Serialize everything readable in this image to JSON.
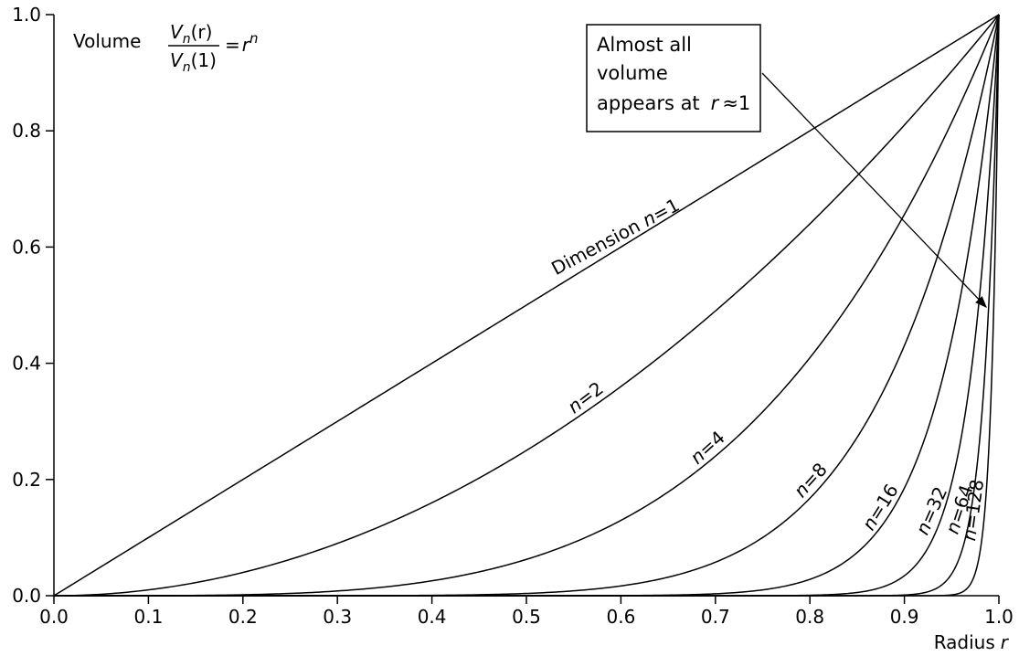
{
  "chart_data": {
    "type": "line",
    "formula": "y = r^n",
    "title_prefix": "Volume",
    "formula_parts": {
      "num_V": "V",
      "num_sub": "n",
      "num_arg": "(r)",
      "den_V": "V",
      "den_sub": "n",
      "den_arg": "(1)",
      "equals": "=",
      "rhs_base": "r",
      "rhs_exp": "n"
    },
    "annotation": {
      "line1": "Almost all",
      "line2": "volume",
      "line3_text": "appears at",
      "line3_var": "r",
      "line3_rest": "≈1"
    },
    "xlabel_text": "Radius",
    "xlabel_var": "r",
    "xlim": [
      0,
      1
    ],
    "ylim": [
      0,
      1
    ],
    "x_ticks": [
      "0.0",
      "0.1",
      "0.2",
      "0.3",
      "0.4",
      "0.5",
      "0.6",
      "0.7",
      "0.8",
      "0.9",
      "1.0"
    ],
    "y_ticks": [
      "0.0",
      "0.2",
      "0.4",
      "0.6",
      "0.8",
      "1.0"
    ],
    "series": [
      {
        "n": 1,
        "label_prefix": "Dimension ",
        "label_var": "n",
        "label_rest": "=1",
        "label_x": 0.6,
        "label_angle": -28
      },
      {
        "n": 2,
        "label_prefix": "",
        "label_var": "n",
        "label_rest": "=2",
        "label_x": 0.57,
        "label_angle": -37
      },
      {
        "n": 4,
        "label_prefix": "",
        "label_var": "n",
        "label_rest": "=4",
        "label_x": 0.7,
        "label_angle": -42
      },
      {
        "n": 8,
        "label_prefix": "",
        "label_var": "n",
        "label_rest": "=8",
        "label_x": 0.81,
        "label_angle": -48
      },
      {
        "n": 16,
        "label_prefix": "",
        "label_var": "n",
        "label_rest": "=16",
        "label_x": 0.885,
        "label_angle": -58
      },
      {
        "n": 32,
        "label_prefix": "",
        "label_var": "n",
        "label_rest": "=32",
        "label_x": 0.94,
        "label_angle": -66
      },
      {
        "n": 64,
        "label_prefix": "",
        "label_var": "n",
        "label_rest": "=64",
        "label_x": 0.97,
        "label_angle": -72
      },
      {
        "n": 128,
        "label_prefix": "",
        "label_var": "n",
        "label_rest": "=128",
        "label_x": 0.985,
        "label_angle": -82
      }
    ]
  }
}
